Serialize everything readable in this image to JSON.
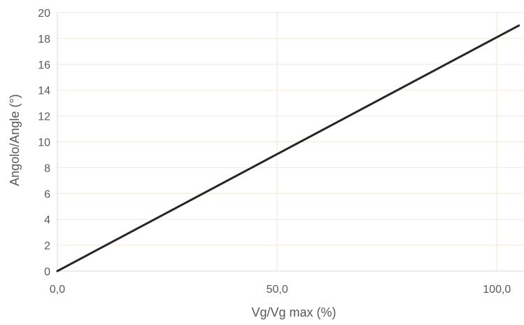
{
  "chart_data": {
    "type": "line",
    "title": "",
    "xlabel": "Vg/Vg max (%)",
    "ylabel": "Angolo/Angle (°)",
    "xlim": [
      0,
      106
    ],
    "ylim": [
      0,
      20
    ],
    "x_ticks": [
      0,
      50,
      100
    ],
    "x_tick_labels": [
      "0,0",
      "50,0",
      "100,0"
    ],
    "y_ticks": [
      0,
      2,
      4,
      6,
      8,
      10,
      12,
      14,
      16,
      18,
      20
    ],
    "y_tick_labels": [
      "0",
      "2",
      "4",
      "6",
      "8",
      "10",
      "12",
      "14",
      "16",
      "18",
      "20"
    ],
    "grid": true,
    "legend": "none",
    "series": [
      {
        "color": "#262626",
        "x": [
          0,
          105
        ],
        "y": [
          0,
          19
        ]
      }
    ]
  },
  "colors": {
    "gridline": "#f2e6dc",
    "axis": "#d9d9d9",
    "text": "#595959"
  }
}
